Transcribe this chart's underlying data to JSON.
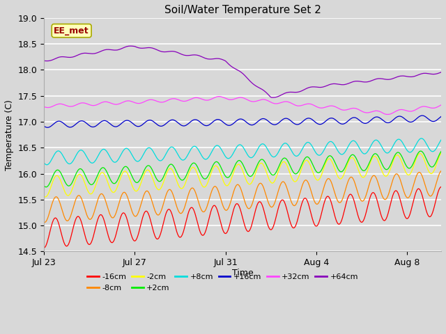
{
  "title": "Soil/Water Temperature Set 2",
  "xlabel": "Time",
  "ylabel": "Temperature (C)",
  "ylim": [
    14.5,
    19.0
  ],
  "xlim_days": 17.5,
  "annotation": "EE_met",
  "bg_color": "#d8d8d8",
  "series": [
    {
      "label": "-16cm",
      "color": "#ff0000",
      "base": 14.85,
      "amp": 0.28,
      "trend": 0.035,
      "phase": 0.0,
      "noise": 0.05
    },
    {
      "label": "-8cm",
      "color": "#ff8800",
      "base": 15.3,
      "amp": 0.24,
      "trend": 0.03,
      "phase": 0.2,
      "noise": 0.04
    },
    {
      "label": "-2cm",
      "color": "#ffff00",
      "base": 15.75,
      "amp": 0.2,
      "trend": 0.025,
      "phase": 0.4,
      "noise": 0.04
    },
    {
      "label": "+2cm",
      "color": "#00ee00",
      "base": 15.9,
      "amp": 0.16,
      "trend": 0.022,
      "phase": 0.6,
      "noise": 0.035
    },
    {
      "label": "+8cm",
      "color": "#00dddd",
      "base": 16.3,
      "amp": 0.13,
      "trend": 0.015,
      "phase": 0.8,
      "noise": 0.03
    },
    {
      "label": "+16cm",
      "color": "#0000cc",
      "base": 16.95,
      "amp": 0.06,
      "trend": 0.002,
      "phase": 1.0,
      "noise": 0.025
    },
    {
      "label": "+32cm",
      "color": "#ff44ff",
      "base": 17.3,
      "amp": 0.03,
      "trend": 0.0,
      "phase": 1.2,
      "noise": 0.025
    },
    {
      "label": "+64cm",
      "color": "#8800bb",
      "base": 18.18,
      "amp": 0.02,
      "trend": 0.0,
      "phase": 1.4,
      "noise": 0.02
    }
  ],
  "title_fontsize": 11,
  "tick_fontsize": 9,
  "label_fontsize": 9,
  "annot_fontsize": 9
}
